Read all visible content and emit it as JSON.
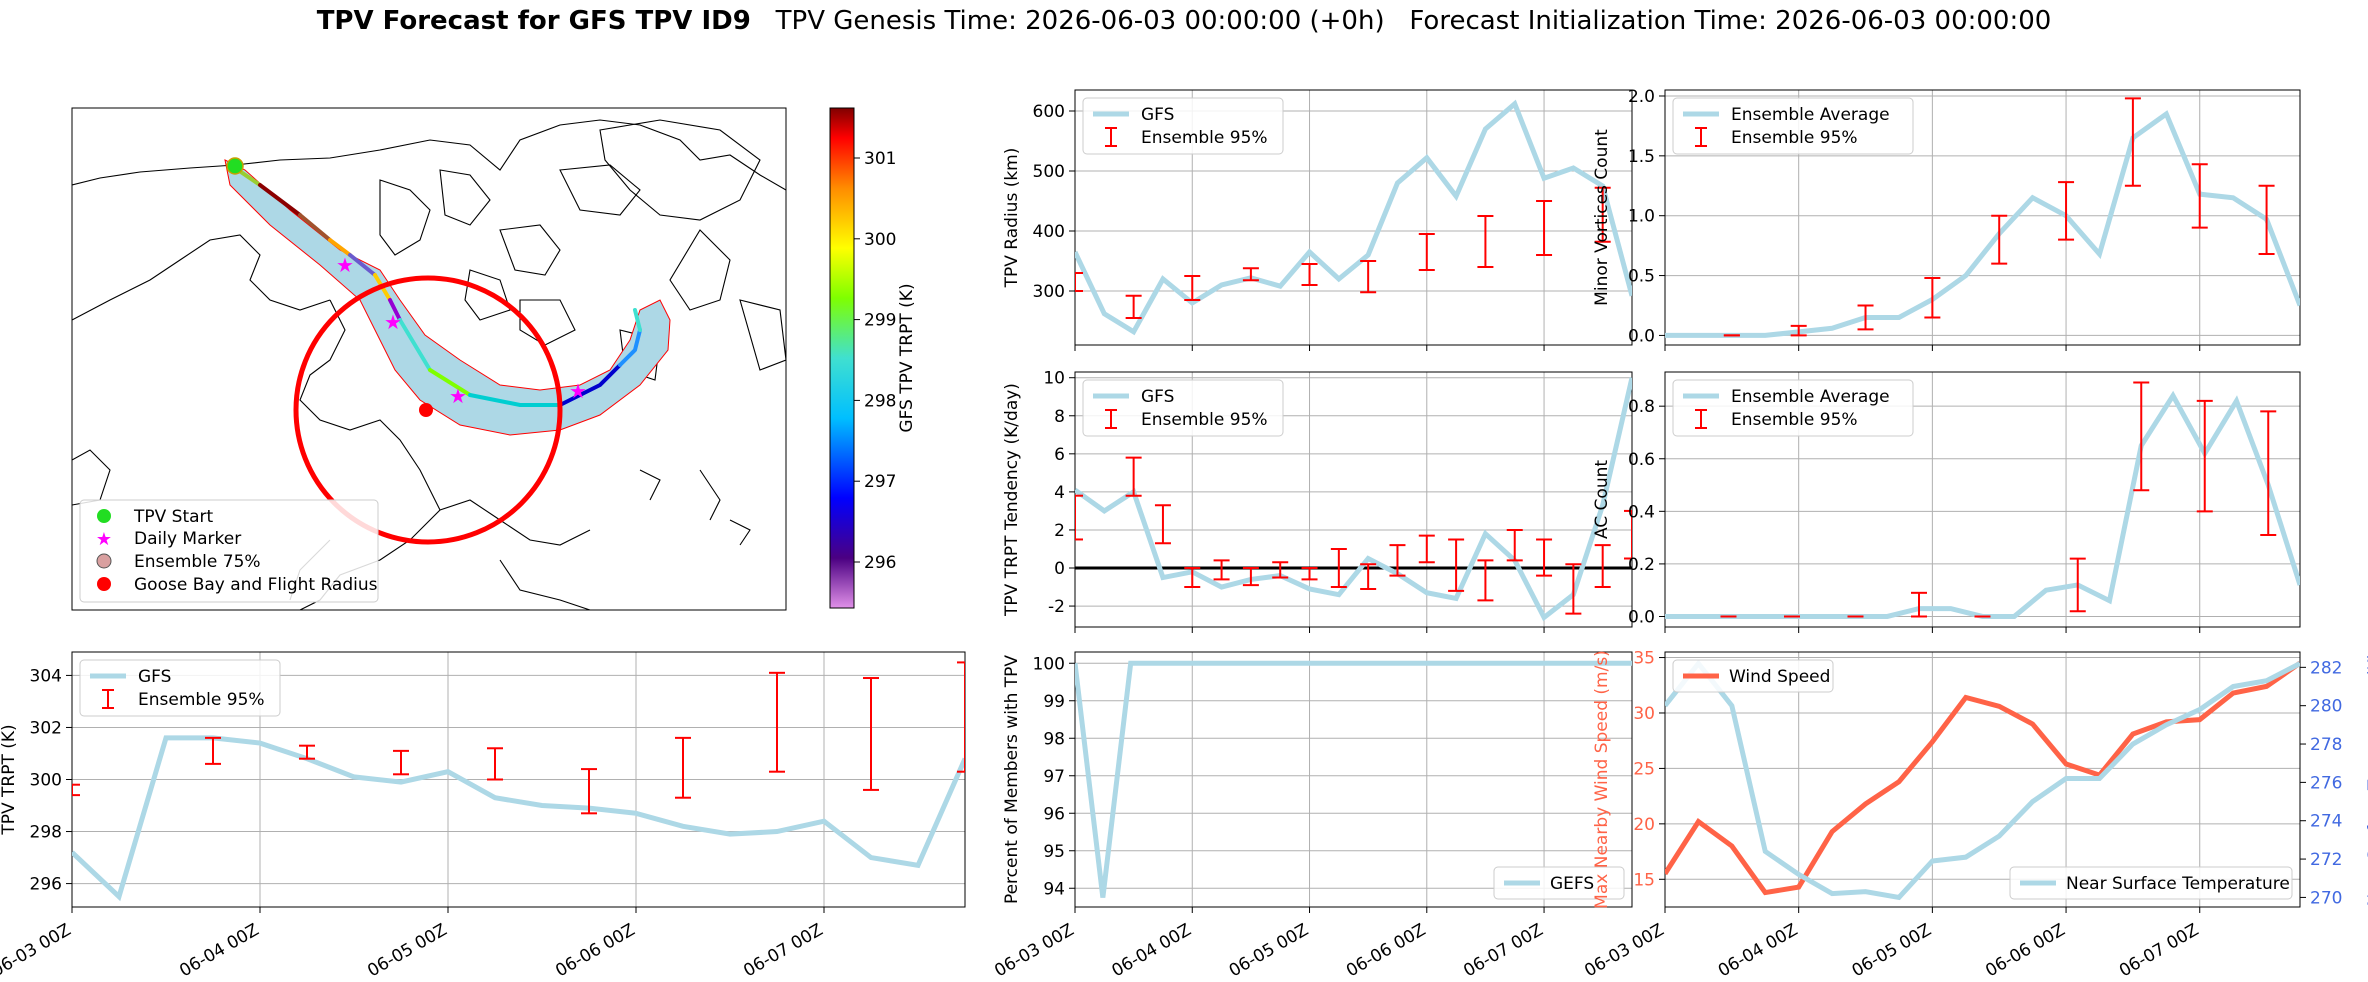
{
  "header": {
    "title_bold": "TPV Forecast for GFS TPV ID9",
    "genesis": "TPV Genesis Time: 2026-06-03 00:00:00 (+0h)",
    "init": "Forecast Initialization Time: 2026-06-03 00:00:00"
  },
  "colors": {
    "line": "#add8e6",
    "error": "#ff0000",
    "wind": "#ff6347",
    "temp_axis": "#4169e1",
    "wind_axis": "#ff6347"
  },
  "x_ticks": [
    "06-03 00Z",
    "06-04 00Z",
    "06-05 00Z",
    "06-06 00Z",
    "06-07 00Z"
  ],
  "map": {
    "colorbar_label": "GFS TPV TRPT (K)",
    "colorbar_ticks": [
      "296",
      "297",
      "298",
      "299",
      "300",
      "301"
    ],
    "legend": [
      "TPV Start",
      "Daily Marker",
      "Ensemble 75%",
      "Goose Bay and Flight Radius"
    ],
    "legend_colors": [
      "#22dd22",
      "#ff00ff",
      "#d9a0a0",
      "#ff0000"
    ]
  },
  "chart_data": [
    {
      "id": "radius",
      "type": "line",
      "ylabel": "TPV Radius (km)",
      "yticks": [
        300,
        400,
        500,
        600
      ],
      "ylim": [
        210,
        635
      ],
      "legend": [
        "GFS",
        "Ensemble 95%"
      ],
      "legend_pos": "top-left",
      "series": [
        {
          "name": "GFS",
          "values": [
            365,
            262,
            232,
            320,
            280,
            310,
            322,
            308,
            365,
            320,
            360,
            480,
            522,
            458,
            570,
            612,
            488,
            505,
            475,
            292
          ]
        }
      ],
      "error_bars": [
        {
          "x": 2,
          "lo": 255,
          "hi": 292
        },
        {
          "x": 4,
          "lo": 285,
          "hi": 325
        },
        {
          "x": 6,
          "lo": 318,
          "hi": 338
        },
        {
          "x": 8,
          "lo": 310,
          "hi": 345
        },
        {
          "x": 10,
          "lo": 298,
          "hi": 350
        },
        {
          "x": 12,
          "lo": 335,
          "hi": 395
        },
        {
          "x": 14,
          "lo": 340,
          "hi": 425
        },
        {
          "x": 16,
          "lo": 360,
          "hi": 450
        },
        {
          "x": 18,
          "lo": 382,
          "hi": 472
        },
        {
          "x": 0,
          "lo": 300,
          "hi": 330
        }
      ]
    },
    {
      "id": "minor",
      "type": "line",
      "ylabel": "Minor Vortices Count",
      "yticks": [
        0.0,
        0.5,
        1.0,
        1.5,
        2.0
      ],
      "ylim": [
        -0.08,
        2.05
      ],
      "yticklabels": [
        "0.0",
        "0.5",
        "1.0",
        "1.5",
        "2.0"
      ],
      "legend": [
        "Ensemble Average",
        "Ensemble 95%"
      ],
      "legend_pos": "top-left",
      "series": [
        {
          "name": "Ensemble Average",
          "values": [
            0,
            0,
            0,
            0,
            0.03,
            0.06,
            0.15,
            0.15,
            0.3,
            0.5,
            0.85,
            1.15,
            1.0,
            0.68,
            1.65,
            1.85,
            1.18,
            1.15,
            0.97,
            0.25
          ]
        }
      ],
      "error_bars": [
        {
          "x": 2,
          "lo": 0,
          "hi": 0
        },
        {
          "x": 4,
          "lo": 0,
          "hi": 0.08
        },
        {
          "x": 6,
          "lo": 0.05,
          "hi": 0.25
        },
        {
          "x": 8,
          "lo": 0.15,
          "hi": 0.48
        },
        {
          "x": 10,
          "lo": 0.6,
          "hi": 1.0
        },
        {
          "x": 12,
          "lo": 0.8,
          "hi": 1.28
        },
        {
          "x": 14,
          "lo": 1.25,
          "hi": 1.98
        },
        {
          "x": 16,
          "lo": 0.9,
          "hi": 1.43
        },
        {
          "x": 18,
          "lo": 0.68,
          "hi": 1.25
        }
      ]
    },
    {
      "id": "tendency",
      "type": "line",
      "ylabel": "TPV TRPT Tendency (K/day)",
      "yticks": [
        -2,
        0,
        2,
        4,
        6,
        8,
        10
      ],
      "ylim": [
        -3.1,
        10.3
      ],
      "zero_line": true,
      "legend": [
        "GFS",
        "Ensemble 95%"
      ],
      "legend_pos": "top-left",
      "series": [
        {
          "name": "GFS",
          "values": [
            4.1,
            3.0,
            4.0,
            -0.5,
            -0.2,
            -1.0,
            -0.6,
            -0.4,
            -1.1,
            -1.4,
            0.5,
            -0.3,
            -1.3,
            -1.6,
            1.8,
            0.4,
            -2.6,
            -1.4,
            3.3,
            10.0
          ]
        }
      ],
      "error_bars": [
        {
          "x": 0,
          "lo": 1.5,
          "hi": 3.8
        },
        {
          "x": 2,
          "lo": 3.8,
          "hi": 5.8
        },
        {
          "x": 3,
          "lo": 1.3,
          "hi": 3.3
        },
        {
          "x": 4,
          "lo": -1.0,
          "hi": 0.0
        },
        {
          "x": 5,
          "lo": -0.6,
          "hi": 0.4
        },
        {
          "x": 6,
          "lo": -0.9,
          "hi": 0.0
        },
        {
          "x": 7,
          "lo": -0.5,
          "hi": 0.3
        },
        {
          "x": 8,
          "lo": -0.6,
          "hi": 0.0
        },
        {
          "x": 9,
          "lo": -1.0,
          "hi": 1.0
        },
        {
          "x": 10,
          "lo": -1.1,
          "hi": 0.2
        },
        {
          "x": 11,
          "lo": -0.4,
          "hi": 1.2
        },
        {
          "x": 12,
          "lo": 0.3,
          "hi": 1.7
        },
        {
          "x": 13,
          "lo": -1.2,
          "hi": 1.5
        },
        {
          "x": 14,
          "lo": -1.7,
          "hi": 0.4
        },
        {
          "x": 15,
          "lo": 0.4,
          "hi": 2.0
        },
        {
          "x": 16,
          "lo": -0.4,
          "hi": 1.5
        },
        {
          "x": 17,
          "lo": -2.4,
          "hi": 0.2
        },
        {
          "x": 18,
          "lo": -1.0,
          "hi": 1.2
        },
        {
          "x": 19,
          "lo": 0.5,
          "hi": 3.0
        },
        {
          "x": 20,
          "lo": 0.3,
          "hi": 2.5
        }
      ]
    },
    {
      "id": "ac",
      "type": "line",
      "ylabel": "AC Count",
      "yticks": [
        0.0,
        0.2,
        0.4,
        0.6,
        0.8
      ],
      "ylim": [
        -0.04,
        0.93
      ],
      "yticklabels": [
        "0.0",
        "0.2",
        "0.4",
        "0.6",
        "0.8"
      ],
      "legend": [
        "Ensemble Average",
        "Ensemble 95%"
      ],
      "legend_pos": "top-left",
      "series": [
        {
          "name": "Ensemble Average",
          "values": [
            0,
            0,
            0,
            0,
            0,
            0,
            0,
            0,
            0.03,
            0.03,
            0,
            0,
            0.1,
            0.12,
            0.06,
            0.65,
            0.84,
            0.62,
            0.82,
            0.5,
            0.12
          ]
        }
      ],
      "error_bars": [
        {
          "x": 2,
          "lo": 0,
          "hi": 0
        },
        {
          "x": 4,
          "lo": 0,
          "hi": 0
        },
        {
          "x": 6,
          "lo": 0,
          "hi": 0
        },
        {
          "x": 8,
          "lo": 0,
          "hi": 0.09
        },
        {
          "x": 10,
          "lo": 0,
          "hi": 0
        },
        {
          "x": 13,
          "lo": 0.02,
          "hi": 0.22
        },
        {
          "x": 15,
          "lo": 0.48,
          "hi": 0.89
        },
        {
          "x": 17,
          "lo": 0.4,
          "hi": 0.82
        },
        {
          "x": 19,
          "lo": 0.31,
          "hi": 0.78
        }
      ]
    },
    {
      "id": "trpt",
      "type": "line",
      "ylabel": "TPV TRPT (K)",
      "yticks": [
        296,
        298,
        300,
        302,
        304
      ],
      "ylim": [
        295.1,
        304.9
      ],
      "legend": [
        "GFS",
        "Ensemble 95%"
      ],
      "legend_pos": "top-left",
      "series": [
        {
          "name": "GFS",
          "values": [
            297.2,
            295.5,
            301.6,
            301.6,
            301.4,
            300.8,
            300.1,
            299.9,
            300.3,
            299.3,
            299.0,
            298.9,
            298.7,
            298.2,
            297.9,
            298.0,
            298.4,
            297.0,
            296.7,
            300.8
          ]
        }
      ],
      "error_bars": [
        {
          "x": 0,
          "lo": 299.4,
          "hi": 299.8
        },
        {
          "x": 3,
          "lo": 300.6,
          "hi": 301.6
        },
        {
          "x": 5,
          "lo": 300.8,
          "hi": 301.3
        },
        {
          "x": 7,
          "lo": 300.2,
          "hi": 301.1
        },
        {
          "x": 9,
          "lo": 300.0,
          "hi": 301.2
        },
        {
          "x": 11,
          "lo": 298.7,
          "hi": 300.4
        },
        {
          "x": 13,
          "lo": 299.3,
          "hi": 301.6
        },
        {
          "x": 15,
          "lo": 300.3,
          "hi": 304.1
        },
        {
          "x": 17,
          "lo": 299.6,
          "hi": 303.9
        },
        {
          "x": 19,
          "lo": 300.3,
          "hi": 304.5
        }
      ]
    },
    {
      "id": "percent",
      "type": "line",
      "ylabel": "Percent of Members with TPV",
      "yticks": [
        94,
        95,
        96,
        97,
        98,
        99,
        100
      ],
      "ylim": [
        93.5,
        100.3
      ],
      "legend": [
        "GEFS"
      ],
      "legend_pos": "lower-right",
      "series": [
        {
          "name": "GEFS",
          "values": [
            100,
            93.75,
            100,
            100,
            100,
            100,
            100,
            100,
            100,
            100,
            100,
            100,
            100,
            100,
            100,
            100,
            100,
            100,
            100,
            100,
            100
          ]
        }
      ],
      "error_bars": []
    },
    {
      "id": "wind_temp",
      "type": "line",
      "ylabel": "Max Nearby Wind Speed (m/s)",
      "ylabel2": "Near Surface Temperature (K)",
      "yticks": [
        15,
        20,
        25,
        30,
        35
      ],
      "ylim": [
        12.5,
        35.5
      ],
      "yticks2": [
        270,
        272,
        274,
        276,
        278,
        280,
        282
      ],
      "ylim2": [
        269.5,
        282.8
      ],
      "legend": [
        "Wind Speed"
      ],
      "legend2": [
        "Near Surface Temperature"
      ],
      "series": [
        {
          "name": "Wind Speed",
          "values": [
            15.5,
            20.2,
            18.0,
            13.8,
            14.3,
            19.3,
            21.8,
            23.8,
            27.4,
            31.4,
            30.6,
            29.0,
            25.4,
            24.4,
            28.1,
            29.2,
            29.4,
            31.8,
            32.4,
            34.5
          ]
        },
        {
          "name": "Near Surface Temperature",
          "values": [
            280.0,
            282.2,
            280.0,
            272.4,
            271.2,
            270.2,
            270.3,
            270.0,
            271.9,
            272.1,
            273.2,
            275.0,
            276.2,
            276.2,
            278.0,
            279.0,
            279.8,
            281.0,
            281.3,
            282.2
          ]
        }
      ]
    }
  ]
}
